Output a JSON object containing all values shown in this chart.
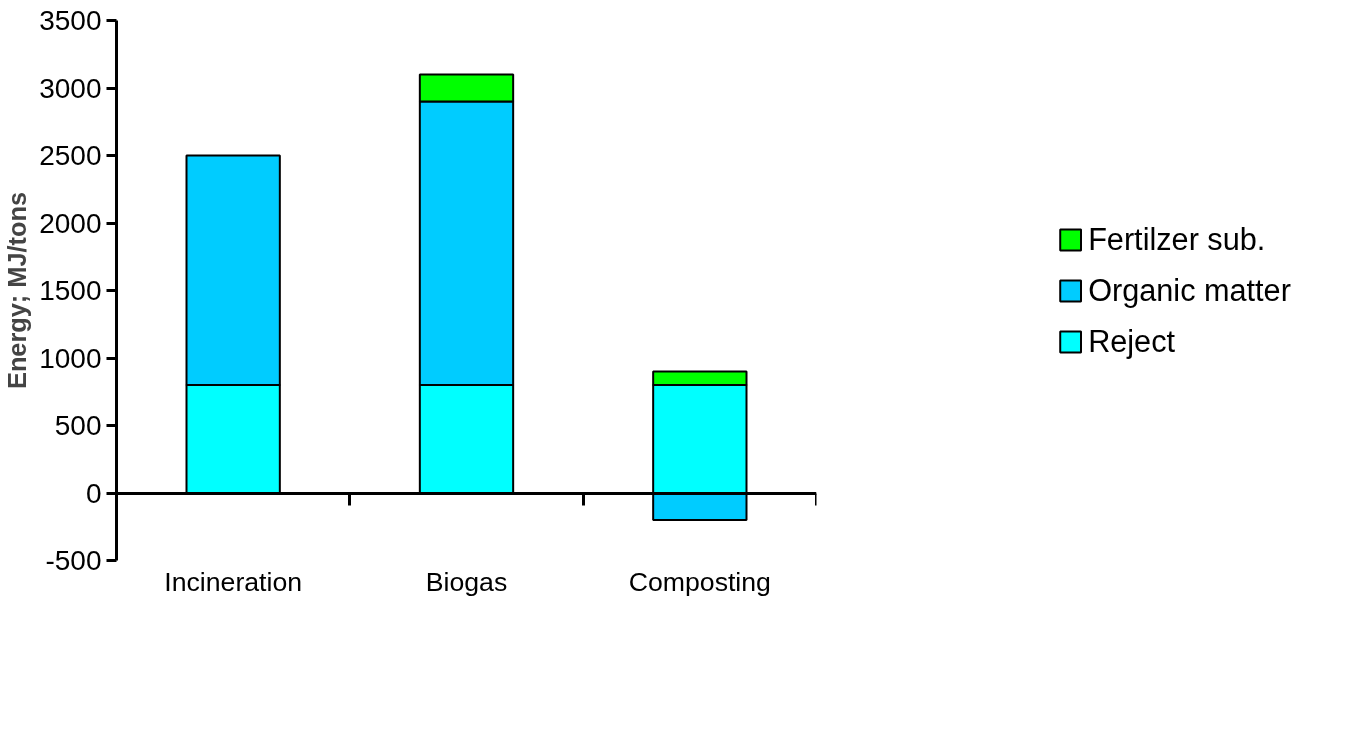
{
  "chart_data": {
    "type": "bar",
    "stacked": true,
    "ylabel": "Energy; MJ/tons",
    "categories": [
      "Incineration",
      "Biogas",
      "Composting"
    ],
    "series": [
      {
        "name": "Reject",
        "color": "#00ffff",
        "values": [
          800,
          800,
          800
        ]
      },
      {
        "name": "Organic matter",
        "color": "#00ccff",
        "values": [
          1700,
          2100,
          -200
        ]
      },
      {
        "name": "Fertilzer sub.",
        "color": "#00ff00",
        "values": [
          null,
          200,
          100
        ]
      }
    ],
    "ylim": [
      -500,
      3500
    ],
    "yticks": [
      {
        "value": -500,
        "label": "-500"
      },
      0,
      500,
      1000,
      1500,
      2000,
      2500,
      3000,
      3500
    ],
    "legend": "right"
  }
}
